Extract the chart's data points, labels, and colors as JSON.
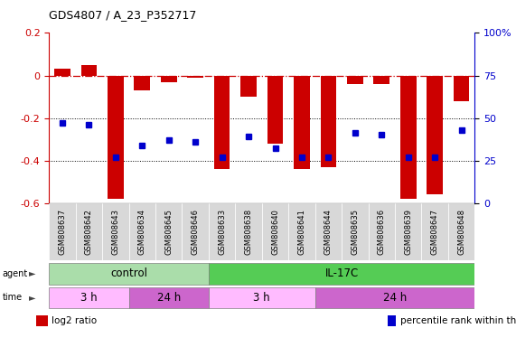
{
  "title": "GDS4807 / A_23_P352717",
  "samples": [
    "GSM808637",
    "GSM808642",
    "GSM808643",
    "GSM808634",
    "GSM808645",
    "GSM808646",
    "GSM808633",
    "GSM808638",
    "GSM808640",
    "GSM808641",
    "GSM808644",
    "GSM808635",
    "GSM808636",
    "GSM808639",
    "GSM808647",
    "GSM808648"
  ],
  "log2_ratio": [
    0.03,
    0.05,
    -0.58,
    -0.07,
    -0.03,
    -0.01,
    -0.44,
    -0.1,
    -0.32,
    -0.44,
    -0.43,
    -0.04,
    -0.04,
    -0.58,
    -0.56,
    -0.12
  ],
  "percentile": [
    47,
    46,
    27,
    34,
    37,
    36,
    27,
    39,
    32,
    27,
    27,
    41,
    40,
    27,
    27,
    43
  ],
  "ylim_left": [
    -0.6,
    0.2
  ],
  "ylim_right": [
    0,
    100
  ],
  "yticks_left": [
    -0.6,
    -0.4,
    -0.2,
    0.0,
    0.2
  ],
  "ytick_labels_left": [
    "-0.6",
    "-0.4",
    "-0.2",
    "0",
    "0.2"
  ],
  "yticks_right": [
    0,
    25,
    50,
    75,
    100
  ],
  "ytick_labels_right": [
    "0",
    "25",
    "50",
    "75",
    "100%"
  ],
  "hline_y": 0.0,
  "dotted_lines": [
    -0.2,
    -0.4
  ],
  "bar_color": "#cc0000",
  "dot_color": "#0000cc",
  "bar_width": 0.6,
  "agent_groups": [
    {
      "label": "control",
      "start": 0,
      "end": 6,
      "color": "#aaddaa"
    },
    {
      "label": "IL-17C",
      "start": 6,
      "end": 16,
      "color": "#55cc55"
    }
  ],
  "time_groups": [
    {
      "label": "3 h",
      "start": 0,
      "end": 3,
      "color": "#ffbbff"
    },
    {
      "label": "24 h",
      "start": 3,
      "end": 6,
      "color": "#cc66cc"
    },
    {
      "label": "3 h",
      "start": 6,
      "end": 10,
      "color": "#ffbbff"
    },
    {
      "label": "24 h",
      "start": 10,
      "end": 16,
      "color": "#cc66cc"
    }
  ],
  "legend_items": [
    {
      "color": "#cc0000",
      "label": "log2 ratio"
    },
    {
      "color": "#0000cc",
      "label": "percentile rank within the sample"
    }
  ]
}
